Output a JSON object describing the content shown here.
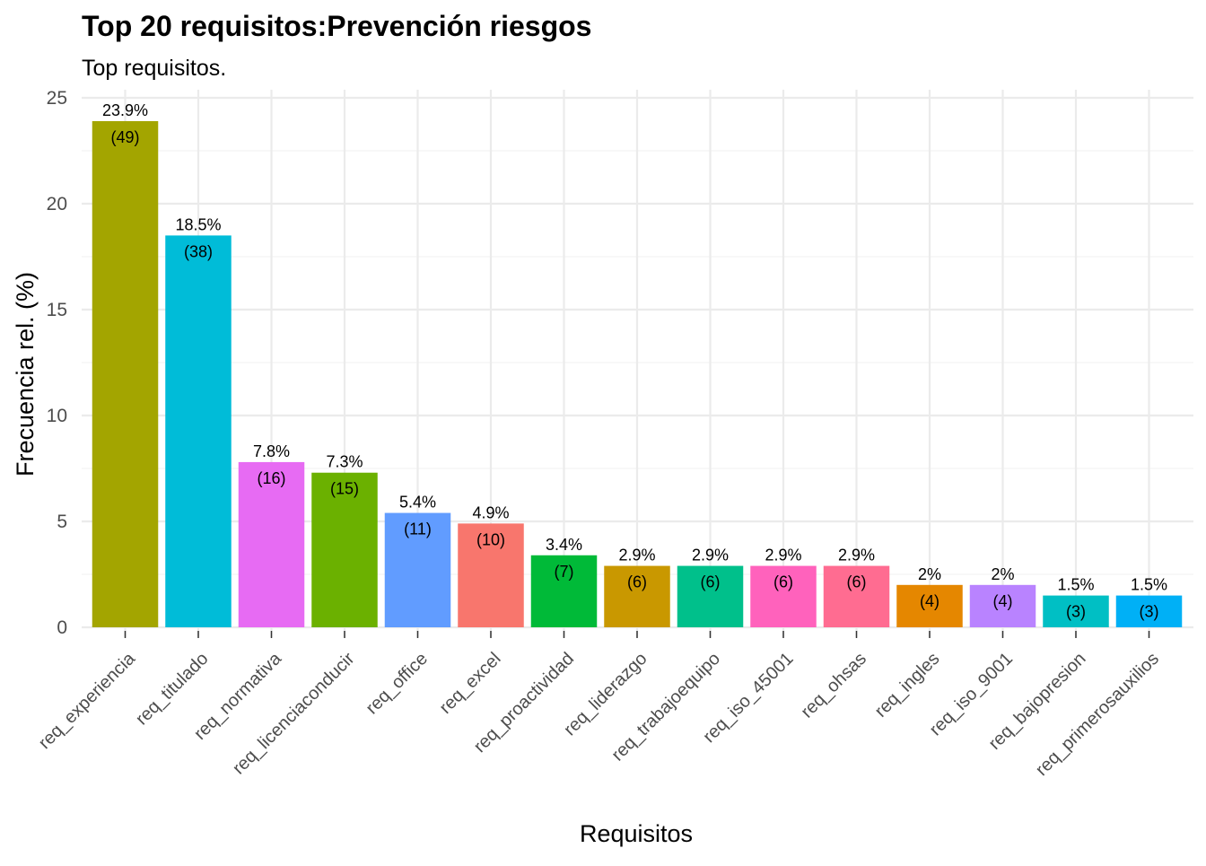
{
  "chart_data": {
    "type": "bar",
    "title": "Top 20 requisitos:Prevención riesgos",
    "subtitle": "Top requisitos.",
    "xlabel": "Requisitos",
    "ylabel": "Frecuencia rel. (%)",
    "ylim": [
      0,
      25
    ],
    "yticks": [
      0,
      5,
      10,
      15,
      20,
      25
    ],
    "grid": true,
    "legend": "none",
    "categories": [
      "req_experiencia",
      "req_titulado",
      "req_normativa",
      "req_licenciaconducir",
      "req_office",
      "req_excel",
      "req_proactividad",
      "req_liderazgo",
      "req_trabajoequipo",
      "req_iso_45001",
      "req_ohsas",
      "req_ingles",
      "req_iso_9001",
      "req_bajopresion",
      "req_primerosauxilios"
    ],
    "values": [
      23.9,
      18.5,
      7.8,
      7.3,
      5.4,
      4.9,
      3.4,
      2.9,
      2.9,
      2.9,
      2.9,
      2,
      2,
      1.5,
      1.5
    ],
    "pct_labels": [
      "23.9%",
      "18.5%",
      "7.8%",
      "7.3%",
      "5.4%",
      "4.9%",
      "3.4%",
      "2.9%",
      "2.9%",
      "2.9%",
      "2.9%",
      "2%",
      "2%",
      "1.5%",
      "1.5%"
    ],
    "count_labels": [
      "(49)",
      "(38)",
      "(16)",
      "(15)",
      "(11)",
      "(10)",
      "(7)",
      "(6)",
      "(6)",
      "(6)",
      "(6)",
      "(4)",
      "(4)",
      "(3)",
      "(3)"
    ],
    "colors": [
      "#A3A500",
      "#00BCD8",
      "#E76BF3",
      "#6BB100",
      "#619CFF",
      "#F8766D",
      "#00BA38",
      "#C99800",
      "#00C08B",
      "#FF62BC",
      "#FF6C91",
      "#E58700",
      "#B983FF",
      "#00BFC4",
      "#00B0F6"
    ]
  }
}
